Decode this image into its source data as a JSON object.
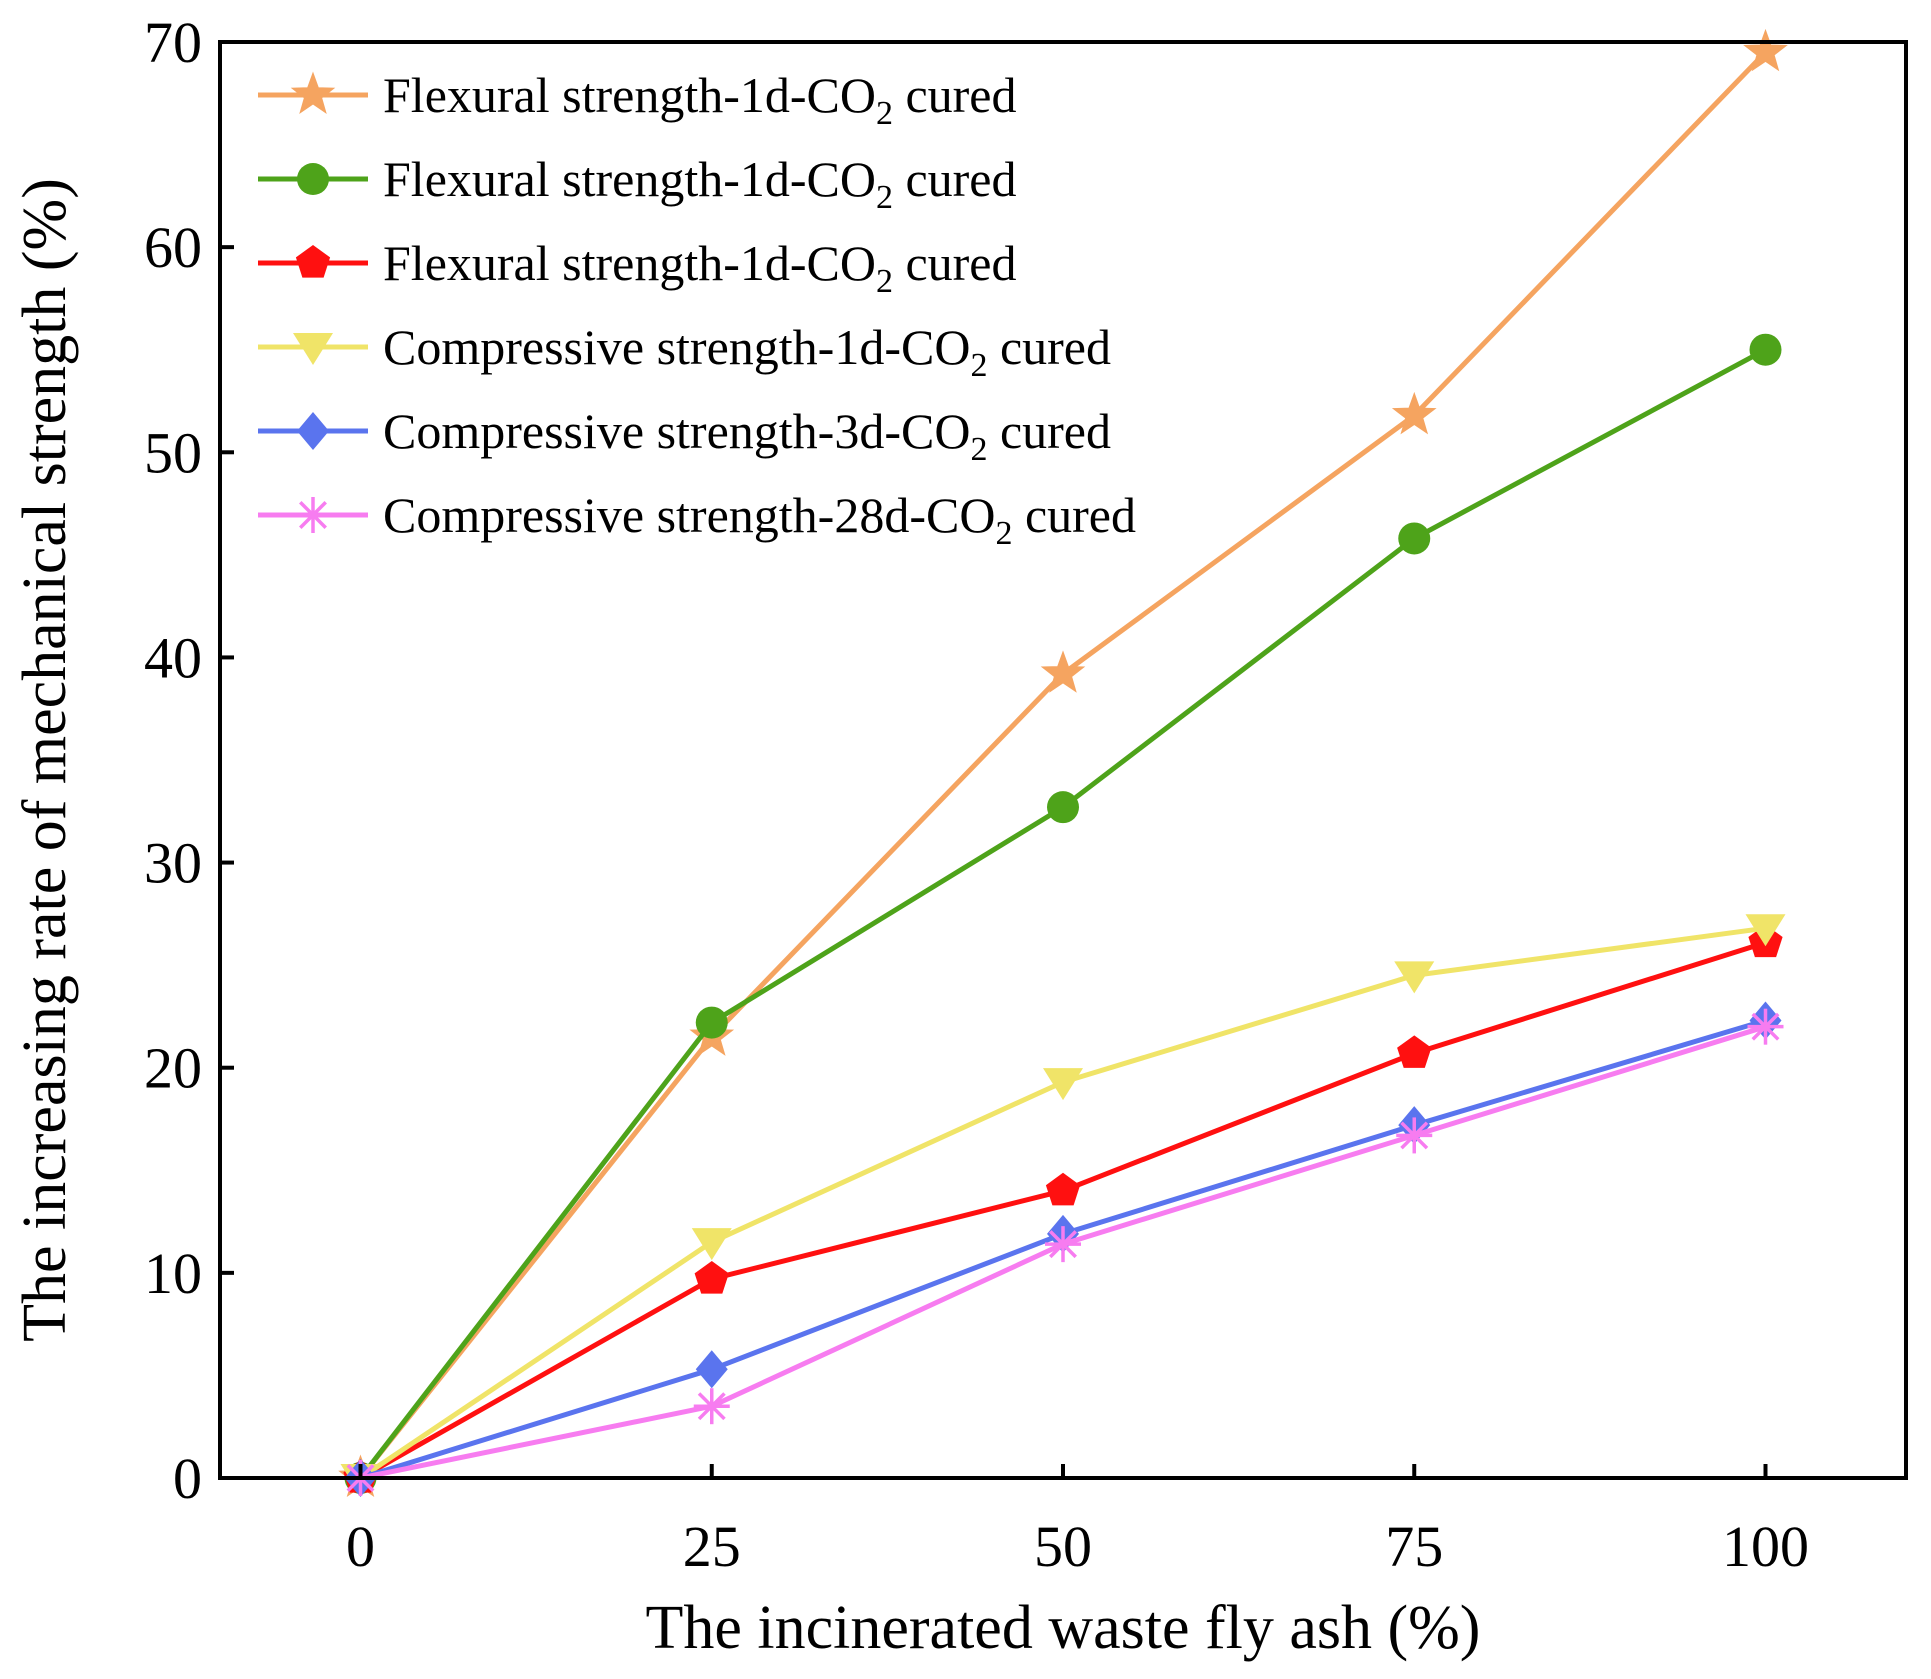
{
  "chart_data": {
    "type": "line",
    "title": "",
    "xlabel": "The incinerated waste fly ash (%)",
    "ylabel": "The increasing rate of mechanical strength (%)",
    "x": [
      0,
      25,
      50,
      75,
      100
    ],
    "x_ticks": [
      0,
      25,
      50,
      75,
      100
    ],
    "y_ticks": [
      0,
      10,
      20,
      30,
      40,
      50,
      60,
      70
    ],
    "xlim": [
      -10,
      110
    ],
    "ylim": [
      0,
      70
    ],
    "grid": false,
    "legend_position": "top-left",
    "series": [
      {
        "name": "Flexural strength-1d-CO2 cured",
        "legend_main": "Flexural strength-1d-CO",
        "legend_sub": "2",
        "legend_tail": " cured",
        "color": "#F5A460",
        "marker": "star",
        "values": [
          0,
          21.5,
          39.2,
          51.8,
          69.5
        ]
      },
      {
        "name": "Flexural strength-1d-CO2 cured",
        "legend_main": "Flexural strength-1d-CO",
        "legend_sub": "2",
        "legend_tail": " cured",
        "color": "#4EA31A",
        "marker": "circle",
        "values": [
          0,
          22.2,
          32.7,
          45.8,
          55.0
        ]
      },
      {
        "name": "Flexural strength-1d-CO2 cured",
        "legend_main": "Flexural strength-1d-CO",
        "legend_sub": "2",
        "legend_tail": " cured",
        "color": "#FF1010",
        "marker": "pentagon",
        "values": [
          0,
          9.7,
          14.0,
          20.7,
          26.1
        ]
      },
      {
        "name": "Compressive strength-1d-CO2 cured",
        "legend_main": "Compressive strength-1d-CO",
        "legend_sub": "2",
        "legend_tail": " cured",
        "color": "#F0E468",
        "marker": "triangle-down",
        "values": [
          0,
          11.5,
          19.3,
          24.5,
          26.8
        ]
      },
      {
        "name": "Compressive strength-3d-CO2 cured",
        "legend_main": "Compressive strength-3d-CO",
        "legend_sub": "2",
        "legend_tail": " cured",
        "color": "#5A74EE",
        "marker": "diamond",
        "values": [
          0,
          5.3,
          11.9,
          17.2,
          22.3
        ]
      },
      {
        "name": "Compressive strength-28d-CO2 cured",
        "legend_main": "Compressive strength-28d-CO",
        "legend_sub": "2",
        "legend_tail": " cured",
        "color": "#F77CF0",
        "marker": "asterisk",
        "values": [
          0,
          3.5,
          11.4,
          16.7,
          22.0
        ]
      }
    ]
  }
}
